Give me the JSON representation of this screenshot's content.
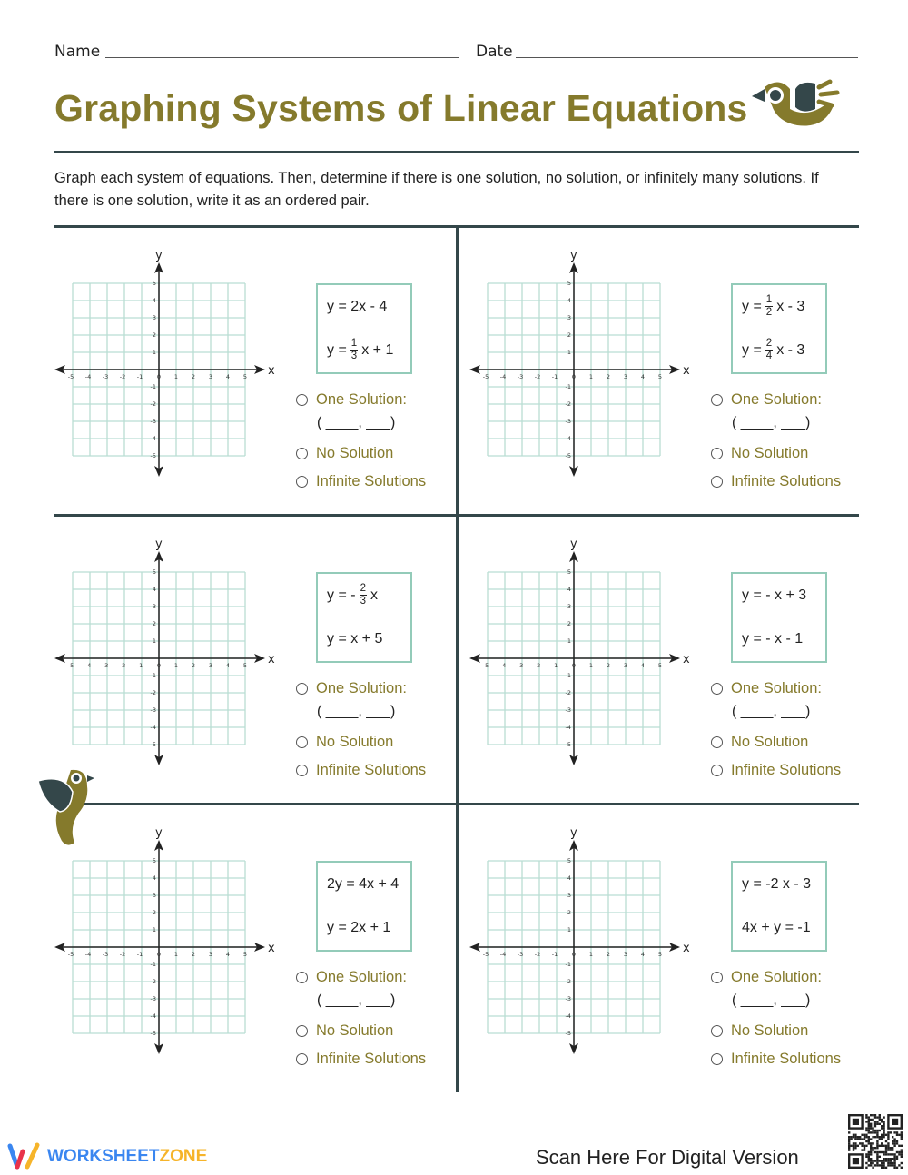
{
  "header": {
    "name_label": "Name",
    "date_label": "Date",
    "title": "Graphing Systems of Linear Equations",
    "instructions": "Graph each system of equations. Then, determine if there is one solution, no solution, or infinitely many solutions. If there is one solution, write it as an ordered pair."
  },
  "graph": {
    "x_label": "x",
    "y_label": "y",
    "ticks": [
      "-5",
      "-4",
      "-3",
      "-2",
      "-1",
      "0",
      "1",
      "2",
      "3",
      "4",
      "5"
    ],
    "range": [
      -5,
      5
    ]
  },
  "options": {
    "one": "One Solution:",
    "pair": "( ____,  ___)",
    "none": "No Solution",
    "infinite": "Infinite Solutions"
  },
  "problems": [
    {
      "eq1": {
        "lhs": "y = 2x - 4"
      },
      "eq2": {
        "lhs": "y =",
        "num": "1",
        "den": "3",
        "rest": "x + 1"
      }
    },
    {
      "eq1": {
        "lhs": "y =",
        "num": "1",
        "den": "2",
        "rest": "x - 3"
      },
      "eq2": {
        "lhs": "y =",
        "num": "2",
        "den": "4",
        "rest": "x - 3"
      }
    },
    {
      "eq1": {
        "lhs": "y = -",
        "num": "2",
        "den": "3",
        "rest": "x"
      },
      "eq2": {
        "lhs": "y = x + 5"
      }
    },
    {
      "eq1": {
        "lhs": "y = - x + 3"
      },
      "eq2": {
        "lhs": "y = - x - 1"
      }
    },
    {
      "eq1": {
        "lhs": "2y = 4x + 4"
      },
      "eq2": {
        "lhs": "y = 2x + 1"
      }
    },
    {
      "eq1": {
        "lhs": "y = -2 x - 3"
      },
      "eq2": {
        "lhs": "4x + y = -1"
      }
    }
  ],
  "footer": {
    "brand_part1": "WORKSHEET",
    "brand_part2": "ZONE",
    "scan_text": "Scan Here For Digital Version"
  },
  "colors": {
    "title": "#857a2c",
    "rule": "#34474a",
    "grid": "#b9ddd3",
    "box": "#93cbb9",
    "brand_blue": "#3a86f0",
    "brand_yellow": "#f6b42a"
  }
}
